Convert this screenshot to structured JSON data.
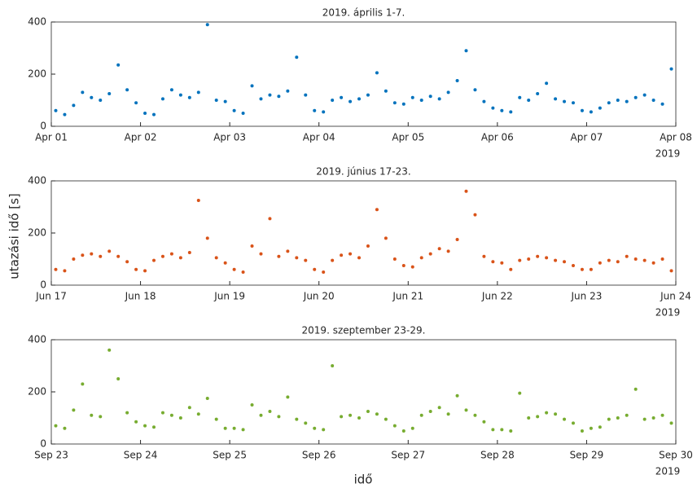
{
  "ylabel": "utazási idő [s]",
  "xlabel": "idő",
  "chart_data": [
    {
      "type": "scatter",
      "title": "2019. április 1-7.",
      "year_label": "2019",
      "color": "#0072bd",
      "xlim": [
        0,
        7
      ],
      "ylim": [
        0,
        400
      ],
      "yticks": [
        0,
        200,
        400
      ],
      "xticks": [
        {
          "value": 0,
          "label": "Apr 01"
        },
        {
          "value": 1,
          "label": "Apr 02"
        },
        {
          "value": 2,
          "label": "Apr 03"
        },
        {
          "value": 3,
          "label": "Apr 04"
        },
        {
          "value": 4,
          "label": "Apr 05"
        },
        {
          "value": 5,
          "label": "Apr 06"
        },
        {
          "value": 6,
          "label": "Apr 07"
        },
        {
          "value": 7,
          "label": "Apr 08"
        }
      ],
      "x": [
        0.05,
        0.15,
        0.25,
        0.35,
        0.45,
        0.55,
        0.65,
        0.75,
        0.85,
        0.95,
        1.05,
        1.15,
        1.25,
        1.35,
        1.45,
        1.55,
        1.65,
        1.75,
        1.85,
        1.95,
        2.05,
        2.15,
        2.25,
        2.35,
        2.45,
        2.55,
        2.65,
        2.75,
        2.85,
        2.95,
        3.05,
        3.15,
        3.25,
        3.35,
        3.45,
        3.55,
        3.65,
        3.75,
        3.85,
        3.95,
        4.05,
        4.15,
        4.25,
        4.35,
        4.45,
        4.55,
        4.65,
        4.75,
        4.85,
        4.95,
        5.05,
        5.15,
        5.25,
        5.35,
        5.45,
        5.55,
        5.65,
        5.75,
        5.85,
        5.95,
        6.05,
        6.15,
        6.25,
        6.35,
        6.45,
        6.55,
        6.65,
        6.75,
        6.85,
        6.95
      ],
      "values": [
        60,
        45,
        80,
        130,
        110,
        100,
        125,
        235,
        140,
        90,
        50,
        45,
        105,
        140,
        120,
        110,
        130,
        390,
        100,
        95,
        60,
        50,
        155,
        105,
        120,
        115,
        135,
        265,
        120,
        60,
        55,
        100,
        110,
        95,
        105,
        120,
        205,
        135,
        90,
        85,
        110,
        100,
        115,
        105,
        130,
        175,
        290,
        140,
        95,
        70,
        60,
        55,
        110,
        100,
        125,
        165,
        105,
        95,
        90,
        60,
        55,
        70,
        90,
        100,
        95,
        110,
        120,
        100,
        85,
        220
      ]
    },
    {
      "type": "scatter",
      "title": "2019. június 17-23.",
      "year_label": "2019",
      "color": "#d95319",
      "xlim": [
        0,
        7
      ],
      "ylim": [
        0,
        400
      ],
      "yticks": [
        0,
        200,
        400
      ],
      "xticks": [
        {
          "value": 0,
          "label": "Jun 17"
        },
        {
          "value": 1,
          "label": "Jun 18"
        },
        {
          "value": 2,
          "label": "Jun 19"
        },
        {
          "value": 3,
          "label": "Jun 20"
        },
        {
          "value": 4,
          "label": "Jun 21"
        },
        {
          "value": 5,
          "label": "Jun 22"
        },
        {
          "value": 6,
          "label": "Jun 23"
        },
        {
          "value": 7,
          "label": "Jun 24"
        }
      ],
      "x": [
        0.05,
        0.15,
        0.25,
        0.35,
        0.45,
        0.55,
        0.65,
        0.75,
        0.85,
        0.95,
        1.05,
        1.15,
        1.25,
        1.35,
        1.45,
        1.55,
        1.65,
        1.75,
        1.85,
        1.95,
        2.05,
        2.15,
        2.25,
        2.35,
        2.45,
        2.55,
        2.65,
        2.75,
        2.85,
        2.95,
        3.05,
        3.15,
        3.25,
        3.35,
        3.45,
        3.55,
        3.65,
        3.75,
        3.85,
        3.95,
        4.05,
        4.15,
        4.25,
        4.35,
        4.45,
        4.55,
        4.65,
        4.75,
        4.85,
        4.95,
        5.05,
        5.15,
        5.25,
        5.35,
        5.45,
        5.55,
        5.65,
        5.75,
        5.85,
        5.95,
        6.05,
        6.15,
        6.25,
        6.35,
        6.45,
        6.55,
        6.65,
        6.75,
        6.85,
        6.95
      ],
      "values": [
        60,
        55,
        100,
        115,
        120,
        110,
        130,
        110,
        90,
        60,
        55,
        95,
        110,
        120,
        105,
        125,
        325,
        180,
        105,
        85,
        60,
        50,
        150,
        120,
        255,
        110,
        130,
        105,
        95,
        60,
        50,
        95,
        115,
        120,
        105,
        150,
        290,
        180,
        100,
        75,
        70,
        105,
        120,
        140,
        130,
        175,
        360,
        270,
        110,
        90,
        85,
        60,
        95,
        100,
        110,
        105,
        95,
        90,
        75,
        60,
        60,
        85,
        95,
        90,
        110,
        100,
        95,
        85,
        100,
        55
      ]
    },
    {
      "type": "scatter",
      "title": "2019. szeptember 23-29.",
      "year_label": "2019",
      "color": "#77ac30",
      "xlim": [
        0,
        7
      ],
      "ylim": [
        0,
        400
      ],
      "yticks": [
        0,
        200,
        400
      ],
      "xticks": [
        {
          "value": 0,
          "label": "Sep 23"
        },
        {
          "value": 1,
          "label": "Sep 24"
        },
        {
          "value": 2,
          "label": "Sep 25"
        },
        {
          "value": 3,
          "label": "Sep 26"
        },
        {
          "value": 4,
          "label": "Sep 27"
        },
        {
          "value": 5,
          "label": "Sep 28"
        },
        {
          "value": 6,
          "label": "Sep 29"
        },
        {
          "value": 7,
          "label": "Sep 30"
        }
      ],
      "x": [
        0.05,
        0.15,
        0.25,
        0.35,
        0.45,
        0.55,
        0.65,
        0.75,
        0.85,
        0.95,
        1.05,
        1.15,
        1.25,
        1.35,
        1.45,
        1.55,
        1.65,
        1.75,
        1.85,
        1.95,
        2.05,
        2.15,
        2.25,
        2.35,
        2.45,
        2.55,
        2.65,
        2.75,
        2.85,
        2.95,
        3.05,
        3.15,
        3.25,
        3.35,
        3.45,
        3.55,
        3.65,
        3.75,
        3.85,
        3.95,
        4.05,
        4.15,
        4.25,
        4.35,
        4.45,
        4.55,
        4.65,
        4.75,
        4.85,
        4.95,
        5.05,
        5.15,
        5.25,
        5.35,
        5.45,
        5.55,
        5.65,
        5.75,
        5.85,
        5.95,
        6.05,
        6.15,
        6.25,
        6.35,
        6.45,
        6.55,
        6.65,
        6.75,
        6.85,
        6.95
      ],
      "values": [
        70,
        60,
        130,
        230,
        110,
        105,
        360,
        250,
        120,
        85,
        70,
        65,
        120,
        110,
        100,
        140,
        115,
        175,
        95,
        60,
        60,
        55,
        150,
        110,
        125,
        105,
        180,
        95,
        80,
        60,
        55,
        300,
        105,
        110,
        100,
        125,
        115,
        95,
        70,
        50,
        60,
        110,
        125,
        140,
        115,
        185,
        130,
        110,
        85,
        55,
        55,
        50,
        195,
        100,
        105,
        120,
        115,
        95,
        80,
        50,
        60,
        65,
        95,
        100,
        110,
        210,
        95,
        100,
        110,
        80
      ]
    }
  ]
}
